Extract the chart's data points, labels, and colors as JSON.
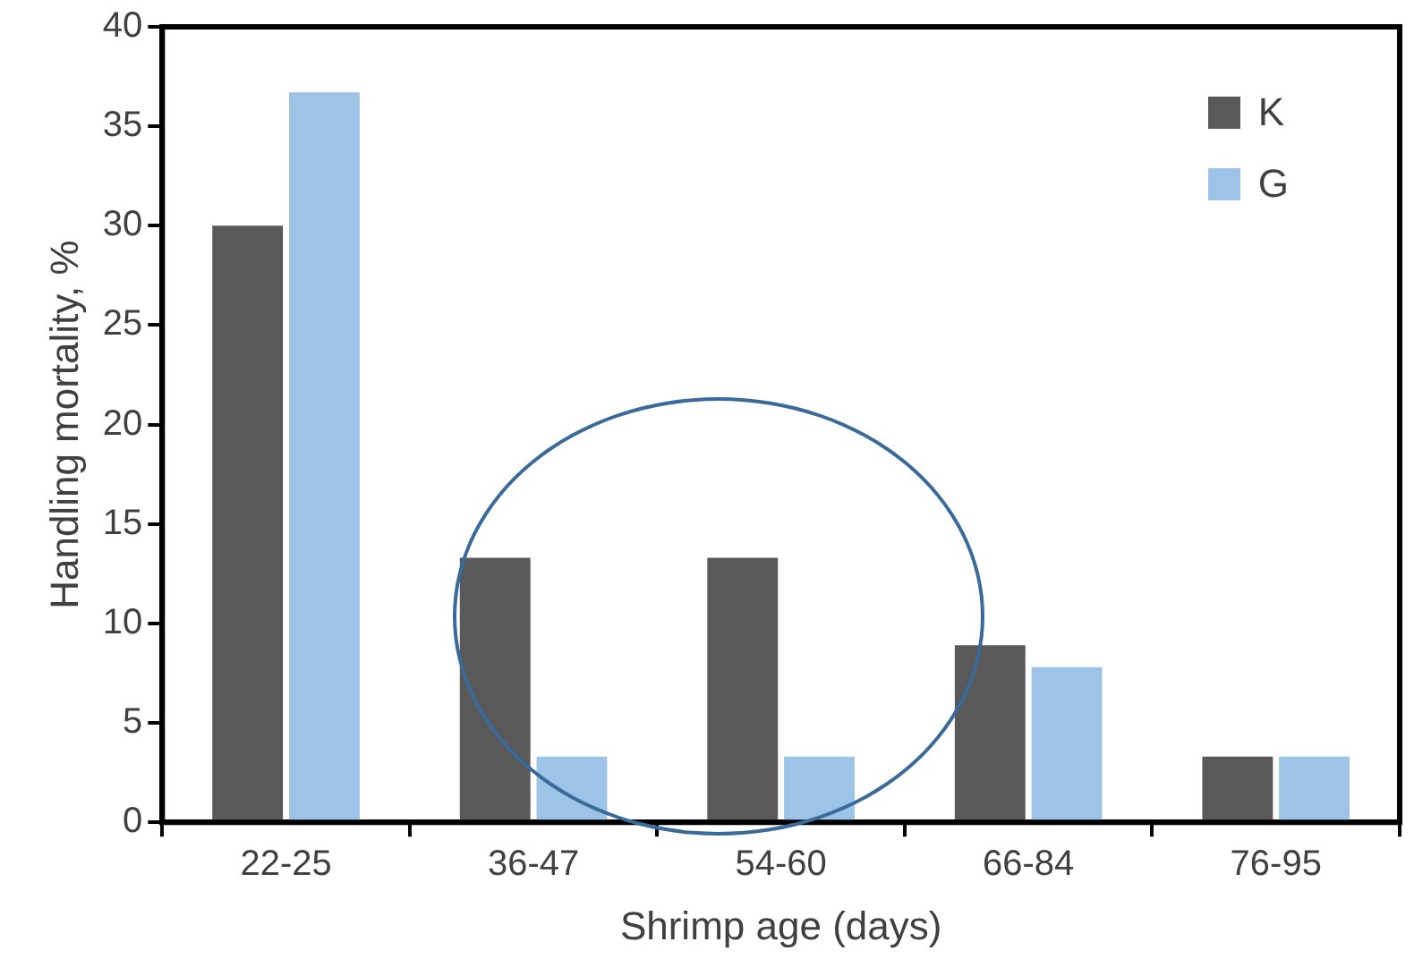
{
  "chart_data": {
    "type": "bar",
    "xlabel": "Shrimp age (days)",
    "ylabel": "Handling mortality, %",
    "categories": [
      "22-25",
      "36-47",
      "54-60",
      "66-84",
      "76-95"
    ],
    "series": [
      {
        "name": "K",
        "color": "#595959",
        "values": [
          30,
          13.3,
          13.3,
          8.9,
          3.3
        ]
      },
      {
        "name": "G",
        "color": "#9dc3e6",
        "values": [
          36.7,
          3.3,
          3.3,
          7.8,
          3.3
        ]
      }
    ],
    "ylim": [
      0,
      40
    ],
    "yticks": [
      0,
      5,
      10,
      15,
      20,
      25,
      30,
      35,
      40
    ],
    "grid": false,
    "legend": "top right"
  }
}
